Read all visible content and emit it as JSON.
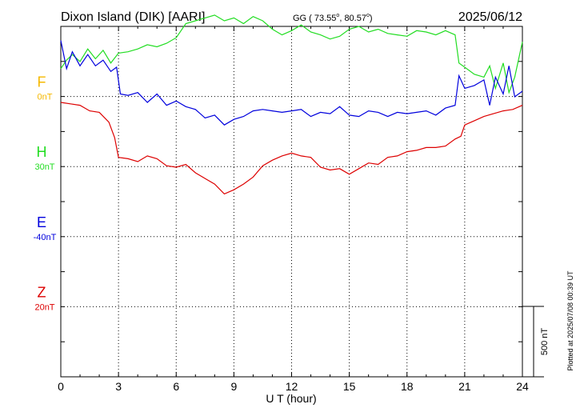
{
  "header": {
    "station": "Dixon Island (DIK)  [AARI]",
    "coords_prefix": "GG ( 73.55",
    "coords_lat_deg": "o",
    "coords_mid": ",  80.57",
    "coords_lon_deg": "o",
    "coords_suffix": ")",
    "date": "2025/06/12"
  },
  "plotted_note": "Plotted at 2025/07/08 00:39 UT",
  "chart_data": {
    "type": "line",
    "title": "Dixon Island (DIK)  [AARI]",
    "xlabel": "U T (hour)",
    "xlim": [
      0,
      24
    ],
    "xticks": [
      0,
      3,
      6,
      9,
      12,
      15,
      18,
      21,
      24
    ],
    "x_tick_labels": [
      "0",
      "3",
      "6",
      "9",
      "12",
      "15",
      "18",
      "21",
      "24"
    ],
    "grid": true,
    "scale_bar": {
      "label": "500 nT",
      "value_nT": 500
    },
    "series": [
      {
        "name": "F",
        "baseline_label": "0nT",
        "color": "#f5b800",
        "points": []
      },
      {
        "name": "H",
        "baseline_label": "30nT",
        "color": "#22dd22",
        "points": [
          [
            0,
            300
          ],
          [
            0.3,
            240
          ],
          [
            0.6,
            200
          ],
          [
            1,
            250
          ],
          [
            1.4,
            160
          ],
          [
            1.8,
            230
          ],
          [
            2.2,
            170
          ],
          [
            2.6,
            260
          ],
          [
            3,
            190
          ],
          [
            3.5,
            180
          ],
          [
            4,
            160
          ],
          [
            4.5,
            130
          ],
          [
            5,
            145
          ],
          [
            5.5,
            120
          ],
          [
            6,
            80
          ],
          [
            6.5,
            -20
          ],
          [
            7,
            -40
          ],
          [
            7.5,
            -60
          ],
          [
            8,
            -80
          ],
          [
            8.5,
            -40
          ],
          [
            9,
            -60
          ],
          [
            9.5,
            -20
          ],
          [
            10,
            -70
          ],
          [
            10.5,
            -40
          ],
          [
            11,
            20
          ],
          [
            11.5,
            60
          ],
          [
            12,
            30
          ],
          [
            12.5,
            -10
          ],
          [
            13,
            40
          ],
          [
            13.5,
            60
          ],
          [
            14,
            90
          ],
          [
            14.5,
            70
          ],
          [
            15,
            20
          ],
          [
            15.5,
            0
          ],
          [
            16,
            40
          ],
          [
            16.5,
            20
          ],
          [
            17,
            50
          ],
          [
            17.5,
            60
          ],
          [
            18,
            70
          ],
          [
            18.5,
            30
          ],
          [
            19,
            40
          ],
          [
            19.5,
            60
          ],
          [
            20,
            30
          ],
          [
            20.5,
            60
          ],
          [
            20.7,
            260
          ],
          [
            21,
            290
          ],
          [
            21.5,
            340
          ],
          [
            22,
            360
          ],
          [
            22.3,
            280
          ],
          [
            22.6,
            440
          ],
          [
            23,
            260
          ],
          [
            23.3,
            470
          ],
          [
            23.6,
            360
          ],
          [
            24,
            110
          ]
        ]
      },
      {
        "name": "E",
        "baseline_label": "-40nT",
        "color": "#0000dd",
        "points": [
          [
            0,
            100
          ],
          [
            0.3,
            300
          ],
          [
            0.6,
            180
          ],
          [
            1,
            280
          ],
          [
            1.4,
            200
          ],
          [
            1.8,
            280
          ],
          [
            2.2,
            240
          ],
          [
            2.6,
            320
          ],
          [
            2.9,
            290
          ],
          [
            3.1,
            480
          ],
          [
            3.5,
            490
          ],
          [
            4,
            470
          ],
          [
            4.5,
            540
          ],
          [
            5,
            480
          ],
          [
            5.5,
            560
          ],
          [
            6,
            530
          ],
          [
            6.5,
            570
          ],
          [
            7,
            590
          ],
          [
            7.5,
            650
          ],
          [
            8,
            630
          ],
          [
            8.5,
            700
          ],
          [
            9,
            660
          ],
          [
            9.5,
            640
          ],
          [
            10,
            600
          ],
          [
            10.5,
            590
          ],
          [
            11,
            600
          ],
          [
            11.5,
            610
          ],
          [
            12,
            600
          ],
          [
            12.5,
            590
          ],
          [
            13,
            640
          ],
          [
            13.5,
            610
          ],
          [
            14,
            620
          ],
          [
            14.5,
            570
          ],
          [
            15,
            630
          ],
          [
            15.5,
            640
          ],
          [
            16,
            600
          ],
          [
            16.5,
            610
          ],
          [
            17,
            640
          ],
          [
            17.5,
            610
          ],
          [
            18,
            620
          ],
          [
            18.5,
            610
          ],
          [
            19,
            600
          ],
          [
            19.5,
            630
          ],
          [
            20,
            580
          ],
          [
            20.5,
            560
          ],
          [
            20.7,
            350
          ],
          [
            21,
            440
          ],
          [
            21.5,
            420
          ],
          [
            22,
            380
          ],
          [
            22.3,
            560
          ],
          [
            22.6,
            360
          ],
          [
            23,
            480
          ],
          [
            23.3,
            280
          ],
          [
            23.6,
            500
          ],
          [
            24,
            460
          ]
        ]
      },
      {
        "name": "Z",
        "baseline_label": "20nT",
        "color": "#dd0000",
        "points": [
          [
            0,
            540
          ],
          [
            0.5,
            550
          ],
          [
            1,
            560
          ],
          [
            1.5,
            600
          ],
          [
            2,
            610
          ],
          [
            2.5,
            680
          ],
          [
            2.8,
            790
          ],
          [
            3,
            930
          ],
          [
            3.5,
            940
          ],
          [
            4,
            960
          ],
          [
            4.5,
            920
          ],
          [
            5,
            940
          ],
          [
            5.5,
            990
          ],
          [
            6,
            1000
          ],
          [
            6.5,
            980
          ],
          [
            7,
            1040
          ],
          [
            7.5,
            1080
          ],
          [
            8,
            1120
          ],
          [
            8.5,
            1190
          ],
          [
            9,
            1160
          ],
          [
            9.5,
            1120
          ],
          [
            10,
            1070
          ],
          [
            10.5,
            990
          ],
          [
            11,
            950
          ],
          [
            11.5,
            920
          ],
          [
            12,
            900
          ],
          [
            12.5,
            920
          ],
          [
            13,
            930
          ],
          [
            13.5,
            1000
          ],
          [
            14,
            1020
          ],
          [
            14.5,
            1010
          ],
          [
            15,
            1050
          ],
          [
            15.5,
            1010
          ],
          [
            16,
            970
          ],
          [
            16.5,
            980
          ],
          [
            17,
            930
          ],
          [
            17.5,
            920
          ],
          [
            18,
            890
          ],
          [
            18.5,
            880
          ],
          [
            19,
            860
          ],
          [
            19.5,
            860
          ],
          [
            20,
            850
          ],
          [
            20.5,
            800
          ],
          [
            20.8,
            780
          ],
          [
            21,
            700
          ],
          [
            21.5,
            670
          ],
          [
            22,
            640
          ],
          [
            22.5,
            620
          ],
          [
            23,
            600
          ],
          [
            23.5,
            590
          ],
          [
            24,
            560
          ]
        ]
      }
    ]
  }
}
